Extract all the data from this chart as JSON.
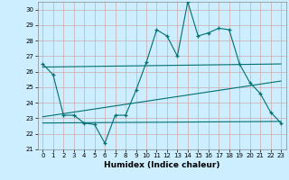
{
  "xlabel": "Humidex (Indice chaleur)",
  "bg_color": "#cceeff",
  "grid_color": "#ccaaaa",
  "line_color": "#007070",
  "xlim": [
    -0.5,
    23.5
  ],
  "ylim": [
    21,
    30.5
  ],
  "xticks": [
    0,
    1,
    2,
    3,
    4,
    5,
    6,
    7,
    8,
    9,
    10,
    11,
    12,
    13,
    14,
    15,
    16,
    17,
    18,
    19,
    20,
    21,
    22,
    23
  ],
  "yticks": [
    21,
    22,
    23,
    24,
    25,
    26,
    27,
    28,
    29,
    30
  ],
  "series_main": {
    "x": [
      0,
      1,
      2,
      3,
      4,
      5,
      6,
      7,
      8,
      9,
      10,
      11,
      12,
      13,
      14,
      15,
      16,
      17,
      18,
      19,
      20,
      21,
      22,
      23
    ],
    "y": [
      26.5,
      25.8,
      23.2,
      23.2,
      22.7,
      22.6,
      21.4,
      23.2,
      23.2,
      24.8,
      26.6,
      28.7,
      28.3,
      27.0,
      30.5,
      28.3,
      28.5,
      28.8,
      28.7,
      26.5,
      25.3,
      24.6,
      23.4,
      22.7
    ]
  },
  "trend1": {
    "x": [
      0,
      23
    ],
    "y": [
      26.3,
      26.5
    ]
  },
  "trend2": {
    "x": [
      0,
      23
    ],
    "y": [
      23.1,
      25.4
    ]
  },
  "trend3": {
    "x": [
      0,
      23
    ],
    "y": [
      22.7,
      22.8
    ]
  }
}
